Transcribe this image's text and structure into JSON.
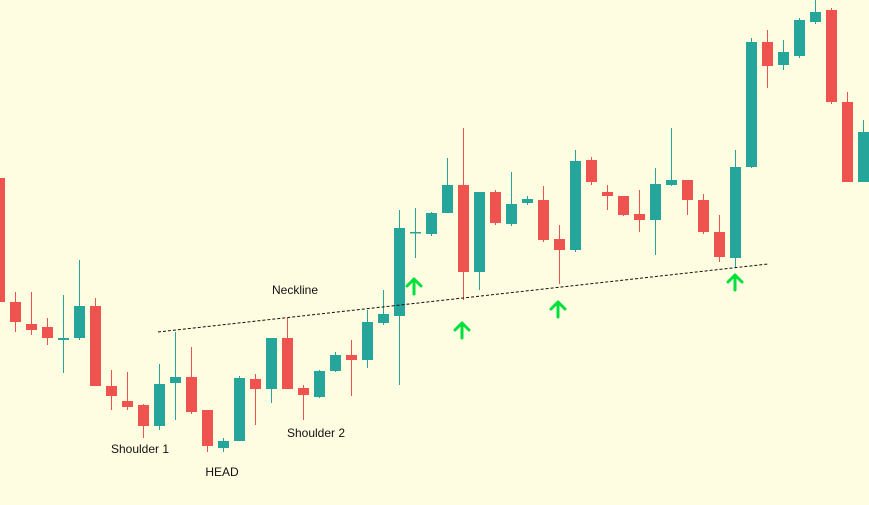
{
  "chart_data": {
    "type": "candlestick",
    "annotations": [
      "Neckline",
      "Shoulder 1",
      "HEAD",
      "Shoulder 2"
    ],
    "up_color": "#26a69a",
    "down_color": "#ef5350",
    "ylim": [
      0,
      505
    ],
    "open": [
      327,
      203,
      181,
      178,
      165,
      167,
      199,
      119,
      104,
      100,
      79,
      122,
      128,
      95,
      57,
      64,
      126,
      116,
      167,
      117,
      108,
      134,
      150,
      145,
      182,
      189,
      272,
      271,
      292,
      320,
      233,
      313,
      281,
      302,
      305,
      266,
      255,
      345,
      313,
      309,
      291,
      285,
      320,
      325,
      305,
      273,
      247,
      338,
      463,
      440,
      449,
      483,
      495,
      403,
      323
    ],
    "high": [
      327,
      213,
      213,
      187,
      210,
      245,
      207,
      135,
      133,
      101,
      141,
      173,
      158,
      95,
      67,
      129,
      131,
      167,
      187,
      120,
      135,
      153,
      165,
      195,
      215,
      295,
      297,
      293,
      347,
      377,
      313,
      315,
      333,
      309,
      319,
      280,
      355,
      348,
      320,
      309,
      315,
      337,
      377,
      325,
      311,
      290,
      355,
      467,
      475,
      465,
      487,
      505,
      497,
      413,
      385
    ],
    "low": [
      203,
      173,
      170,
      160,
      132,
      165,
      119,
      95,
      95,
      67,
      75,
      85,
      91,
      53,
      53,
      64,
      80,
      102,
      116,
      85,
      107,
      133,
      109,
      137,
      180,
      120,
      247,
      269,
      292,
      205,
      215,
      280,
      279,
      300,
      263,
      221,
      253,
      320,
      295,
      289,
      273,
      250,
      319,
      290,
      271,
      243,
      237,
      337,
      417,
      435,
      447,
      481,
      401,
      323,
      323
    ],
    "close": [
      203,
      183,
      175,
      167,
      167,
      199,
      119,
      109,
      98,
      79,
      121,
      128,
      93,
      59,
      64,
      127,
      116,
      167,
      116,
      110,
      134,
      150,
      145,
      183,
      191,
      277,
      273,
      292,
      320,
      233,
      313,
      282,
      301,
      306,
      265,
      255,
      344,
      323,
      309,
      290,
      285,
      321,
      325,
      305,
      273,
      248,
      338,
      463,
      439,
      453,
      485,
      493,
      403,
      323,
      373
    ]
  }
}
